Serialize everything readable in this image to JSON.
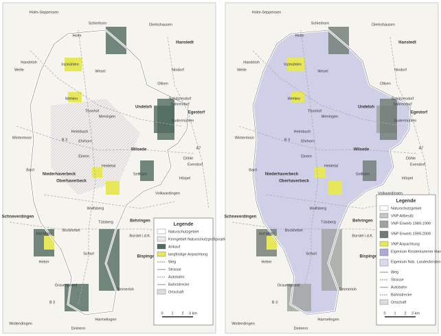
{
  "places": [
    "Holm-Seppensen",
    "Schierhorn",
    "Dierkshausen",
    "Holm",
    "Hanstedt",
    "Welle",
    "Handeloh",
    "Nindorf",
    "Wesel",
    "Inzmühlen",
    "Ollsen",
    "Wehlen",
    "Thonhof",
    "Meningen",
    "Schätzendorf",
    "Sahrendorf",
    "Undeloh",
    "Egestorf",
    "Sudermühlen",
    "Heimbuch",
    "Wintermoor",
    "B 3",
    "Ehrhorn",
    "Wilsede",
    "A7",
    "Döhle",
    "Einem",
    "Evendorf",
    "Heidetal",
    "Barrl",
    "Niederhaverbeck",
    "Oberhaverbeck",
    "Sellhorn",
    "Hörpel",
    "Volkwardingen",
    "Wulfsberg",
    "Schneverdingen",
    "Tütsberg",
    "Behringen",
    "Hof Möhr",
    "Bockheber",
    "Bispingen",
    "Borstel i.d.K.",
    "Scharl",
    "Heber",
    "Grauengrund",
    "Timmerloh",
    "B 3",
    "Woltendingen",
    "Harmelingen",
    "Deimern"
  ],
  "left_legend": {
    "title": "Legende",
    "items": [
      "Naturschutzgebiet",
      "Kerngebiet Naturschutzgroßprojekt",
      "Ankauf",
      "langfristige Anpachtung",
      "Weg",
      "Strasse",
      "Autobahn",
      "Bahnstrecke",
      "Ortschaft"
    ],
    "scale": [
      "0",
      "1",
      "2",
      "3 km"
    ]
  },
  "right_legend": {
    "title": "Legende",
    "items": [
      "Naturschutzgebiet",
      "VNP Altbesitz",
      "VNP Erwerb 1989-1999",
      "VNP Erwerb 1999-2009",
      "VNP Anpachtung",
      "Eigentum Klosterkammer Hannover",
      "Eigentum Nds. Landesforsten",
      "Weg",
      "Strasse",
      "Autobahn",
      "Bahnstrecke",
      "Ortschaft"
    ],
    "scale": [
      "0",
      "1",
      "2",
      "3 km"
    ]
  }
}
